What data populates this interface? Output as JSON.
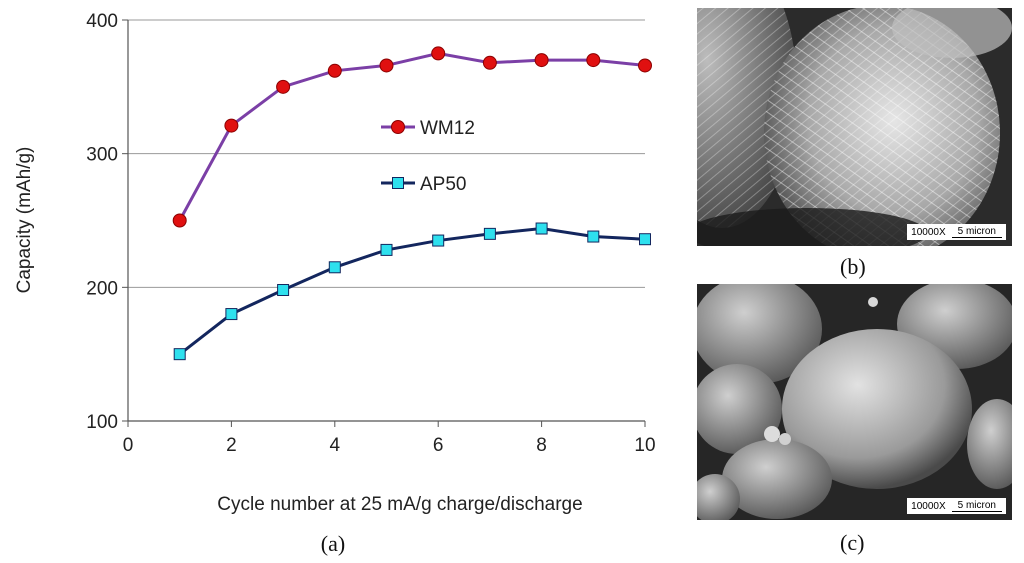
{
  "chart_data": {
    "type": "line",
    "x": [
      1,
      2,
      3,
      4,
      5,
      6,
      7,
      8,
      9,
      10
    ],
    "series": [
      {
        "name": "WM12",
        "values": [
          250,
          321,
          350,
          362,
          366,
          375,
          368,
          370,
          370,
          366
        ],
        "color": "#7b3fa6",
        "marker": "circle",
        "marker_color": "#e01010"
      },
      {
        "name": "AP50",
        "values": [
          150,
          180,
          198,
          215,
          228,
          235,
          240,
          244,
          238,
          236
        ],
        "color": "#13265e",
        "marker": "square",
        "marker_color": "#2ee0ee"
      }
    ],
    "xlabel": "Cycle number at 25 mA/g charge/discharge",
    "ylabel": "Capacity (mAh/g)",
    "xlim": [
      0,
      10
    ],
    "ylim": [
      100,
      400
    ],
    "xticks": [
      0,
      2,
      4,
      6,
      8,
      10
    ],
    "yticks": [
      100,
      200,
      300,
      400
    ],
    "grid": true,
    "legend_position": "center"
  },
  "panels": {
    "a": "(a)",
    "b": "(b)",
    "c": "(c)"
  },
  "micrographs": {
    "b": {
      "magnification": "10000X",
      "scale": "5 micron"
    },
    "c": {
      "magnification": "10000X",
      "scale": "5 micron"
    }
  }
}
